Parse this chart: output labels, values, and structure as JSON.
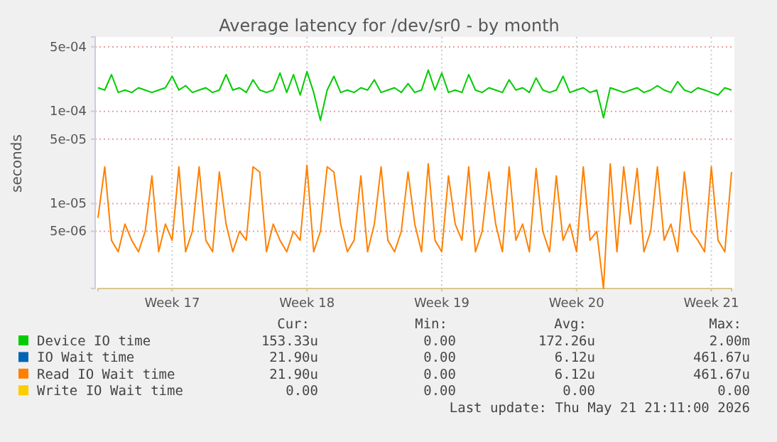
{
  "chart_data": {
    "type": "line",
    "title": "Average latency for /dev/sr0 - by month",
    "ylabel": "seconds",
    "categories": [
      null,
      null,
      null,
      null,
      null,
      null,
      null,
      null,
      null,
      null,
      null,
      "Week 17",
      null,
      null,
      null,
      null,
      null,
      null,
      null,
      null,
      null,
      null,
      null,
      null,
      null,
      null,
      null,
      null,
      null,
      null,
      null,
      "Week 18",
      null,
      null,
      null,
      null,
      null,
      null,
      null,
      null,
      null,
      null,
      null,
      null,
      null,
      null,
      null,
      null,
      null,
      null,
      null,
      "Week 19",
      null,
      null,
      null,
      null,
      null,
      null,
      null,
      null,
      null,
      null,
      null,
      null,
      null,
      null,
      null,
      null,
      null,
      null,
      null,
      "Week 20",
      null,
      null,
      null,
      null,
      null,
      null,
      null,
      null,
      null,
      null,
      null,
      null,
      null,
      null,
      null,
      null,
      null,
      null,
      null,
      "Week 21",
      null,
      null,
      null
    ],
    "series": [
      {
        "name": "Device IO time",
        "color": "#00cc00",
        "values": [
          0.00018,
          0.00017,
          0.00025,
          0.00016,
          0.00017,
          0.00016,
          0.00018,
          0.00017,
          0.00016,
          0.00017,
          0.00018,
          0.00024,
          0.00017,
          0.00019,
          0.00016,
          0.00017,
          0.00018,
          0.00016,
          0.00017,
          0.00025,
          0.00017,
          0.00018,
          0.00016,
          0.00022,
          0.00017,
          0.00016,
          0.00017,
          0.00026,
          0.00016,
          0.00025,
          0.00015,
          0.00027,
          0.00016,
          8e-05,
          0.00017,
          0.00024,
          0.00016,
          0.00017,
          0.00016,
          0.00018,
          0.00017,
          0.00022,
          0.00016,
          0.00017,
          0.00018,
          0.00016,
          0.0002,
          0.00016,
          0.00017,
          0.00028,
          0.00017,
          0.00026,
          0.00016,
          0.00017,
          0.00016,
          0.00025,
          0.00017,
          0.00016,
          0.00018,
          0.00017,
          0.00016,
          0.00022,
          0.00017,
          0.00018,
          0.00016,
          0.00023,
          0.00017,
          0.00016,
          0.00017,
          0.00024,
          0.00016,
          0.00017,
          0.00018,
          0.00016,
          0.00017,
          8.5e-05,
          0.00018,
          0.00017,
          0.00016,
          0.00017,
          0.00018,
          0.00016,
          0.00017,
          0.00019,
          0.00017,
          0.00016,
          0.00021,
          0.00017,
          0.00016,
          0.00018,
          0.00017,
          0.00016,
          0.00015,
          0.00018,
          0.00017
        ]
      },
      {
        "name": "IO Wait time",
        "color": "#0066b3",
        "values": [
          null,
          null,
          null,
          null,
          null,
          null,
          null,
          null,
          null,
          null,
          null,
          null,
          null,
          null,
          null,
          null,
          null,
          null,
          null,
          null,
          null,
          null,
          null,
          null,
          null,
          null,
          null,
          null,
          null,
          null,
          null,
          null,
          null,
          null,
          null,
          null,
          null,
          null,
          null,
          null,
          null,
          null,
          null,
          null,
          null,
          null,
          null,
          null,
          null,
          null,
          null,
          null,
          null,
          null,
          null,
          null,
          null,
          null,
          null,
          null,
          null,
          null,
          null,
          null,
          null,
          null,
          null,
          null,
          null,
          null,
          null,
          null,
          null,
          null,
          null,
          null,
          null,
          null,
          null,
          null,
          null,
          null,
          null,
          null,
          null,
          null,
          null,
          null,
          null,
          null,
          null,
          null,
          null,
          null,
          null
        ]
      },
      {
        "name": "Read IO Wait time",
        "color": "#ff8000",
        "values": [
          7e-06,
          2.5e-05,
          4e-06,
          3e-06,
          6e-06,
          4e-06,
          3e-06,
          5e-06,
          2e-05,
          3e-06,
          6e-06,
          4e-06,
          2.5e-05,
          3e-06,
          5e-06,
          2.5e-05,
          4e-06,
          3e-06,
          2.2e-05,
          6e-06,
          3e-06,
          5e-06,
          4e-06,
          2.5e-05,
          2.2e-05,
          3e-06,
          6e-06,
          4e-06,
          3e-06,
          5e-06,
          4e-06,
          2.6e-05,
          3e-06,
          5e-06,
          2.5e-05,
          2.2e-05,
          6e-06,
          3e-06,
          4e-06,
          2e-05,
          3e-06,
          6e-06,
          2.5e-05,
          4e-06,
          3e-06,
          5e-06,
          2.2e-05,
          6e-06,
          3e-06,
          2.7e-05,
          4e-06,
          3e-06,
          2e-05,
          6e-06,
          4e-06,
          2.5e-05,
          3e-06,
          5e-06,
          2.2e-05,
          6e-06,
          3e-06,
          2.5e-05,
          4e-06,
          6e-06,
          3e-06,
          2.4e-05,
          5e-06,
          3e-06,
          2e-05,
          4e-06,
          6e-06,
          3e-06,
          2.5e-05,
          4e-06,
          5e-06,
          1.2e-06,
          2.7e-05,
          3e-06,
          2.5e-05,
          6e-06,
          2.4e-05,
          3e-06,
          5e-06,
          2.5e-05,
          4e-06,
          6e-06,
          3e-06,
          2.2e-05,
          5e-06,
          4e-06,
          3e-06,
          2.5e-05,
          4e-06,
          3e-06,
          2.2e-05
        ]
      },
      {
        "name": "Write IO Wait time",
        "color": "#ffcc00",
        "values": [
          null,
          null,
          null,
          null,
          null,
          null,
          null,
          null,
          null,
          null,
          null,
          null,
          null,
          null,
          null,
          null,
          null,
          null,
          null,
          null,
          null,
          null,
          null,
          null,
          null,
          null,
          null,
          null,
          null,
          null,
          null,
          null,
          null,
          null,
          null,
          null,
          null,
          null,
          null,
          null,
          null,
          null,
          null,
          null,
          null,
          null,
          null,
          null,
          null,
          null,
          null,
          null,
          null,
          null,
          null,
          null,
          null,
          null,
          null,
          null,
          null,
          null,
          null,
          null,
          null,
          null,
          null,
          null,
          null,
          null,
          null,
          null,
          null,
          null,
          null,
          null,
          null,
          null,
          null,
          null,
          null,
          null,
          null,
          null,
          null,
          null,
          null,
          null,
          null,
          null,
          null,
          null,
          null,
          null,
          null
        ]
      }
    ],
    "log": true,
    "ylim": [
      1.2e-06,
      0.00064
    ],
    "yticks": [
      {
        "value": 5e-06,
        "label": "5e-06"
      },
      {
        "value": 1e-05,
        "label": "1e-05"
      },
      {
        "value": 5e-05,
        "label": "5e-05"
      },
      {
        "value": 0.0001,
        "label": "1e-04"
      },
      {
        "value": 0.0005,
        "label": "5e-04"
      }
    ],
    "grid": true,
    "legend": "bottom",
    "annotations": [
      "Cur:",
      "Min:",
      "Avg:",
      "Max:",
      "153.33u",
      "0.00",
      "172.26u",
      "2.00m",
      "21.90u",
      "0.00",
      "6.12u",
      "461.67u",
      "21.90u",
      "0.00",
      "6.12u",
      "461.67u",
      "0.00",
      "0.00",
      "0.00",
      "0.00",
      "Last update: Thu May 21 21:11:00 2026"
    ]
  }
}
